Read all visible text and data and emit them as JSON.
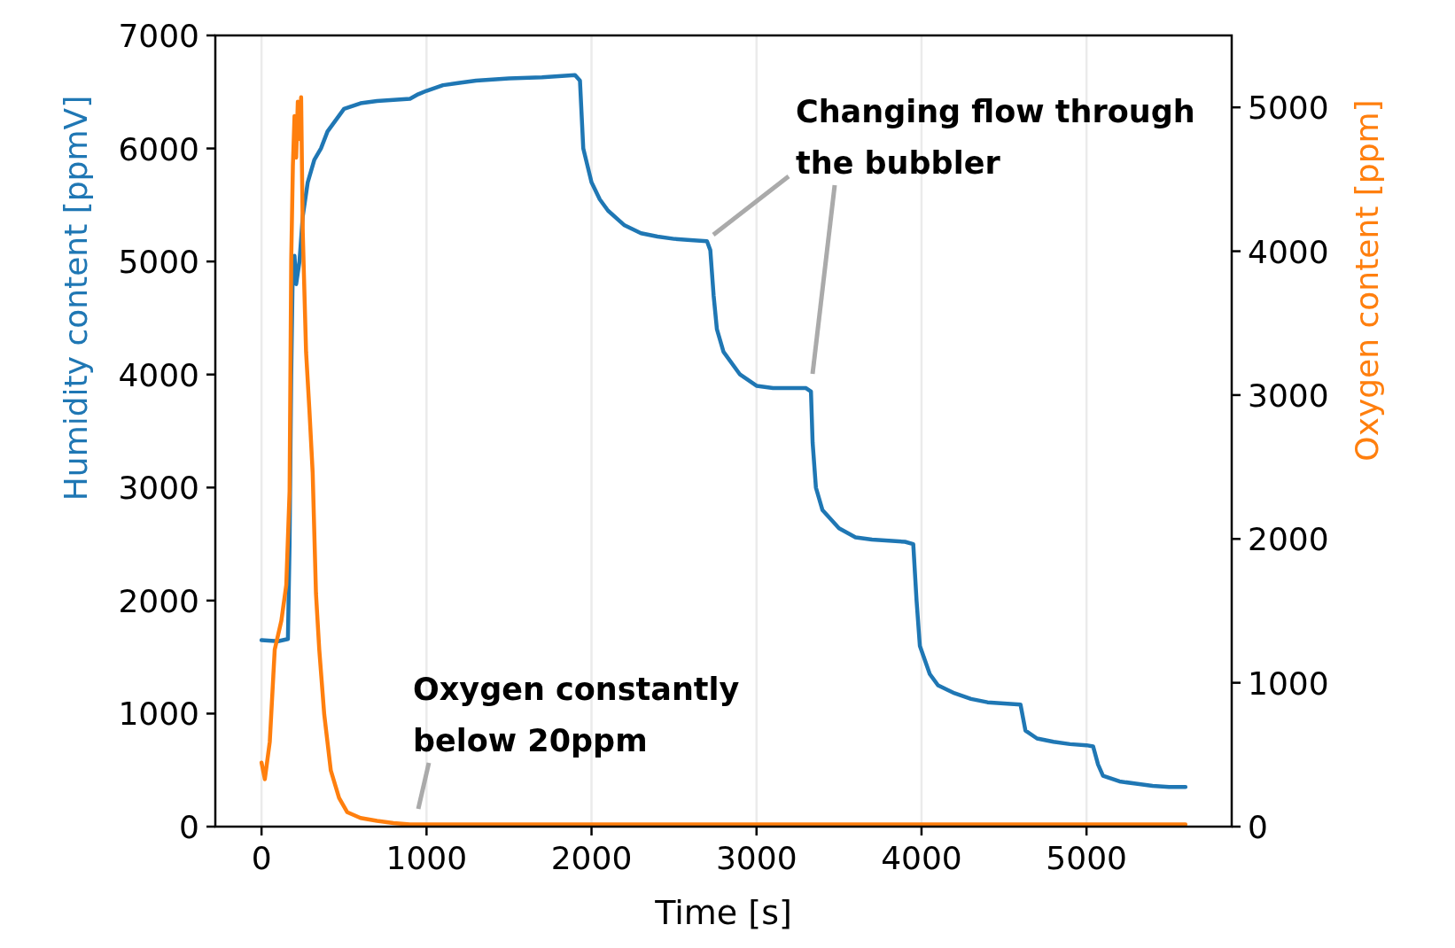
{
  "chart_data": {
    "type": "line",
    "xlabel": "Time [s]",
    "ylabel": "Humidity content [ppmV]",
    "y2label": "Oxygen content [ppm]",
    "xlim": [
      -280,
      5880
    ],
    "xticks": [
      0,
      1000,
      2000,
      3000,
      4000,
      5000
    ],
    "ylim": [
      0,
      7000
    ],
    "yticks": [
      0,
      1000,
      2000,
      3000,
      4000,
      5000,
      6000,
      7000
    ],
    "y2lim": [
      0,
      5500
    ],
    "y2ticks": [
      0,
      1000,
      2000,
      3000,
      4000,
      5000
    ],
    "grid": "x",
    "marker": "none",
    "line_style": "solid",
    "series": [
      {
        "color": "#1f77b4",
        "x": [
          0,
          100,
          160,
          170,
          180,
          190,
          200,
          210,
          230,
          250,
          280,
          320,
          360,
          400,
          450,
          500,
          600,
          700,
          800,
          900,
          950,
          1000,
          1100,
          1200,
          1300,
          1500,
          1700,
          1900,
          1930,
          1950,
          2000,
          2050,
          2100,
          2200,
          2300,
          2400,
          2500,
          2600,
          2700,
          2720,
          2740,
          2760,
          2800,
          2900,
          3000,
          3100,
          3200,
          3300,
          3330,
          3340,
          3360,
          3400,
          3500,
          3600,
          3700,
          3900,
          3950,
          3970,
          3990,
          4050,
          4100,
          4200,
          4300,
          4400,
          4500,
          4600,
          4630,
          4700,
          4800,
          4900,
          5000,
          5040,
          5070,
          5100,
          5200,
          5300,
          5400,
          5500,
          5600
        ],
        "values": [
          1650,
          1640,
          1660,
          2500,
          4000,
          5000,
          5050,
          4800,
          5000,
          5400,
          5700,
          5900,
          6000,
          6150,
          6250,
          6350,
          6400,
          6420,
          6430,
          6440,
          6480,
          6510,
          6560,
          6580,
          6600,
          6620,
          6630,
          6650,
          6600,
          6000,
          5700,
          5550,
          5450,
          5320,
          5250,
          5220,
          5200,
          5190,
          5180,
          5100,
          4700,
          4400,
          4200,
          4000,
          3900,
          3880,
          3880,
          3880,
          3850,
          3400,
          3000,
          2800,
          2640,
          2560,
          2540,
          2520,
          2500,
          2000,
          1600,
          1350,
          1250,
          1180,
          1130,
          1100,
          1090,
          1080,
          850,
          780,
          750,
          730,
          720,
          710,
          550,
          450,
          400,
          380,
          360,
          350,
          350
        ]
      },
      {
        "color": "#ff7f0e",
        "axis": "y2",
        "x": [
          0,
          20,
          50,
          80,
          120,
          150,
          170,
          180,
          190,
          200,
          210,
          220,
          230,
          240,
          250,
          270,
          290,
          310,
          330,
          350,
          380,
          420,
          470,
          520,
          600,
          700,
          800,
          900,
          1000,
          2000,
          3000,
          4000,
          5000,
          5600
        ],
        "values": [
          445,
          330,
          590,
          1230,
          1430,
          1680,
          2330,
          3940,
          4590,
          4940,
          4650,
          5040,
          4780,
          5070,
          4130,
          3300,
          2900,
          2460,
          1620,
          1230,
          780,
          390,
          200,
          100,
          60,
          40,
          25,
          15,
          15,
          15,
          15,
          15,
          15,
          15
        ]
      }
    ],
    "annotations": [
      "Changing flow through\nthe bubbler",
      "Oxygen constantly\nbelow 20ppm"
    ]
  }
}
